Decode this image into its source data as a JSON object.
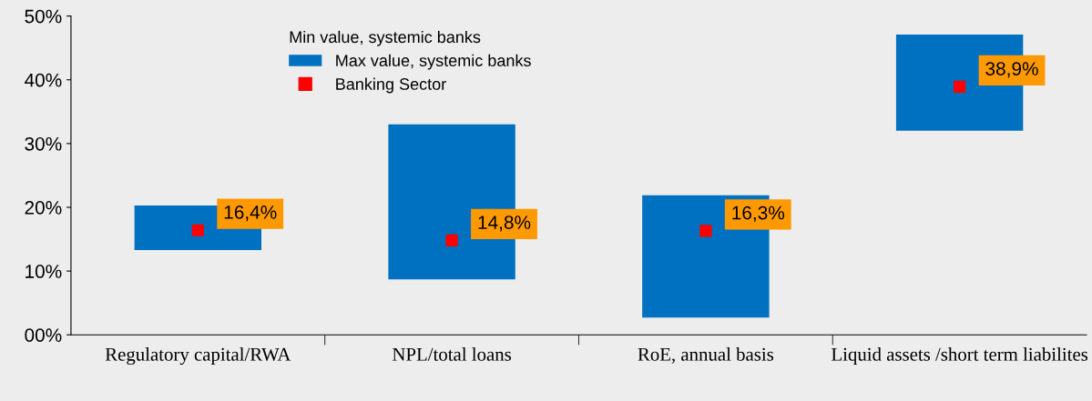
{
  "chart_data": {
    "type": "bar",
    "categories": [
      "Regulatory capital/RWA",
      "NPL/total loans",
      "RoE, annual basis",
      "Liquid assets /short term liabilites"
    ],
    "legend_title": "Min value, systemic banks",
    "series": [
      {
        "name": "Max value, systemic banks",
        "color": "#0070c0",
        "base": [
          13.3,
          8.7,
          2.7,
          32.0
        ],
        "values": [
          7.0,
          24.3,
          19.2,
          15.1
        ]
      },
      {
        "name": "Banking Sector",
        "type": "scatter",
        "marker": "square",
        "color": "#ff0000",
        "values": [
          16.4,
          14.8,
          16.3,
          38.9
        ],
        "value_labels": [
          "16,4%",
          "14,8%",
          "16,3%",
          "38,9%"
        ]
      }
    ],
    "ylim": [
      0,
      50
    ],
    "yticks": [
      {
        "value": 0,
        "label": "00%"
      },
      {
        "value": 10,
        "label": "10%"
      },
      {
        "value": 20,
        "label": "20%"
      },
      {
        "value": 30,
        "label": "30%"
      },
      {
        "value": 40,
        "label": "40%"
      },
      {
        "value": 50,
        "label": "50%"
      }
    ],
    "grid": false,
    "legend": "top left"
  }
}
